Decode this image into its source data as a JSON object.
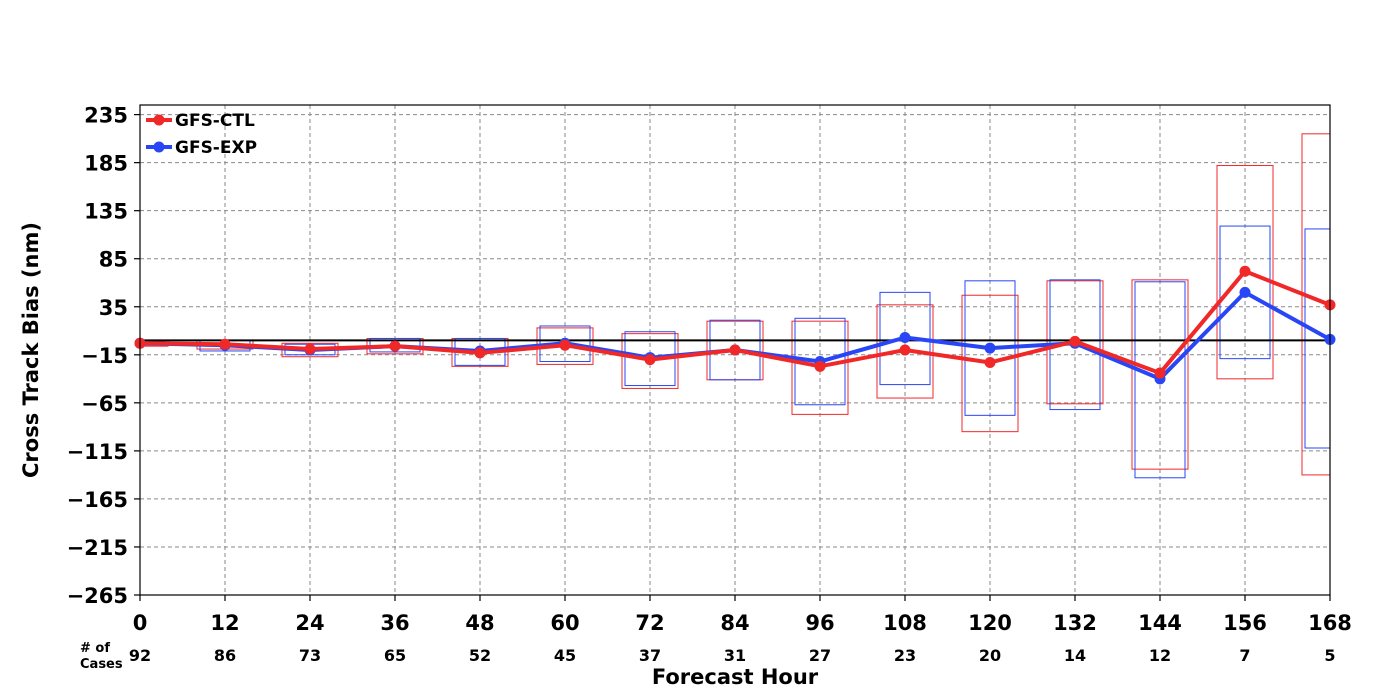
{
  "chart_data": {
    "type": "line",
    "xlabel": "Forecast Hour",
    "ylabel": "Cross Track Bias (nm)",
    "xlim": [
      0,
      168
    ],
    "ylim": [
      -265,
      245
    ],
    "x_ticks": [
      0,
      12,
      24,
      36,
      48,
      60,
      72,
      84,
      96,
      108,
      120,
      132,
      144,
      156,
      168
    ],
    "y_ticks": [
      235,
      185,
      135,
      85,
      35,
      -15,
      -65,
      -115,
      -165,
      -215,
      -265
    ],
    "x_tick_labels": [
      "0",
      "12",
      "24",
      "36",
      "48",
      "60",
      "72",
      "84",
      "96",
      "108",
      "120",
      "132",
      "144",
      "156",
      "168"
    ],
    "y_tick_labels": [
      "235",
      "185",
      "135",
      "85",
      "35",
      "−15",
      "−65",
      "−115",
      "−165",
      "−215",
      "−265"
    ],
    "grid": true,
    "zero_line": 0,
    "legend_position": "top-left",
    "cases_label_line1": "# of",
    "cases_label_line2": "Cases",
    "num_cases": [
      "92",
      "86",
      "73",
      "65",
      "52",
      "45",
      "37",
      "31",
      "27",
      "23",
      "20",
      "14",
      "12",
      "7",
      "5"
    ],
    "series": [
      {
        "name": "GFS-CTL",
        "color": "#f02828",
        "x": [
          0,
          12,
          24,
          36,
          48,
          60,
          72,
          84,
          96,
          108,
          120,
          132,
          144,
          156,
          168
        ],
        "values": [
          -3,
          -4,
          -9,
          -6,
          -13,
          -5,
          -20,
          -10,
          -27,
          -10,
          -23,
          -1,
          -34,
          72,
          37
        ],
        "box_low": [
          -6,
          -9,
          -17,
          -14,
          -27,
          -25,
          -50,
          -41,
          -77,
          -60,
          -95,
          -66,
          -134,
          -40,
          -140
        ],
        "box_high": [
          0,
          0,
          -3,
          2,
          2,
          13,
          7,
          20,
          20,
          37,
          47,
          62,
          63,
          182,
          215
        ]
      },
      {
        "name": "GFS-EXP",
        "color": "#2846f5",
        "x": [
          0,
          12,
          24,
          36,
          48,
          60,
          72,
          84,
          96,
          108,
          120,
          132,
          144,
          156,
          168
        ],
        "values": [
          -3,
          -5,
          -10,
          -6,
          -11,
          -3,
          -18,
          -10,
          -22,
          3,
          -8,
          -3,
          -40,
          50,
          1
        ],
        "box_low": [
          -5,
          -11,
          -15,
          -12,
          -26,
          -22,
          -47,
          -41,
          -67,
          -46,
          -78,
          -72,
          -143,
          -19,
          -112
        ],
        "box_high": [
          -1,
          0,
          -4,
          2,
          2,
          15,
          9,
          21,
          23,
          50,
          62,
          63,
          61,
          119,
          116
        ]
      }
    ]
  }
}
